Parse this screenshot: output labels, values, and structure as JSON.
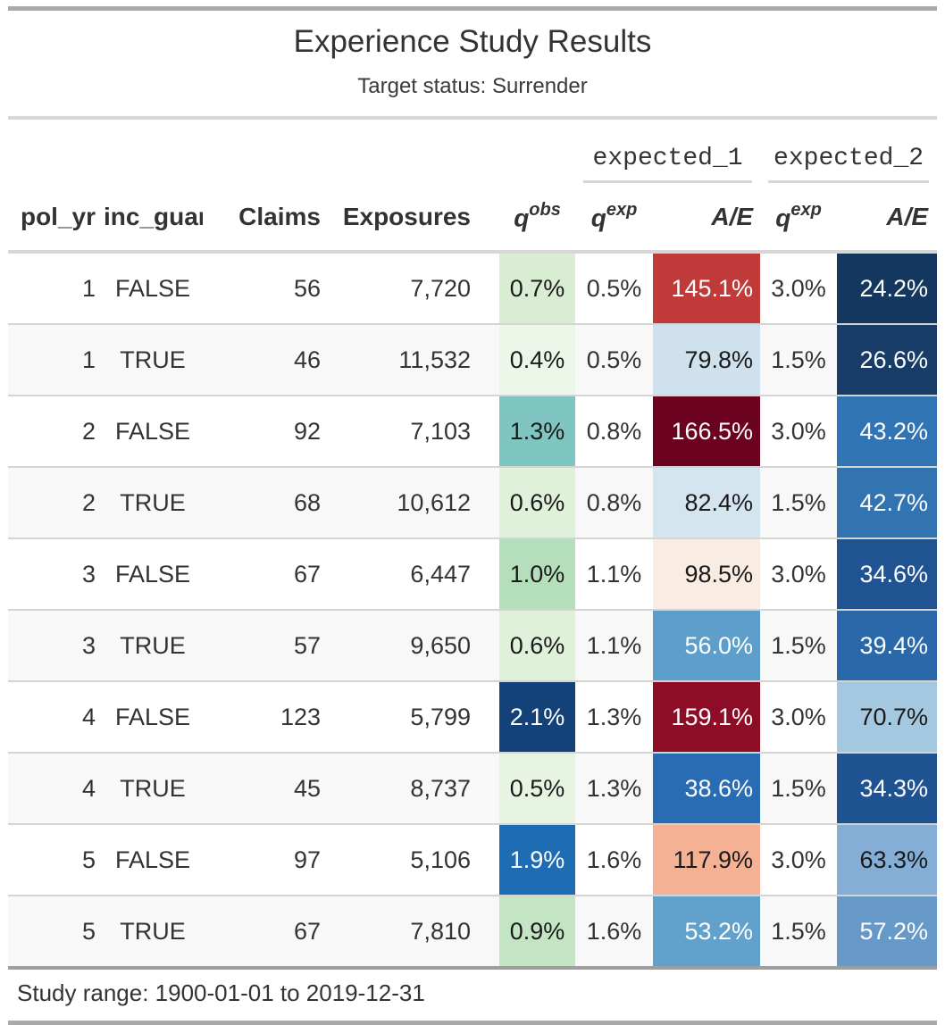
{
  "header": {
    "title": "Experience Study Results",
    "subtitle": "Target status: Surrender"
  },
  "spanners": [
    "expected_1",
    "expected_2"
  ],
  "columns": {
    "pol_yr": "pol_yr",
    "inc_guar": "inc_guar",
    "claims": "Claims",
    "exposures": "Exposures",
    "q_base": "q",
    "q_obs_sup": "obs",
    "q_exp_sup": "exp",
    "ae": "A/E"
  },
  "source_note": "Study range: 1900-01-01 to 2019-12-31",
  "palette": {
    "border_dark": "#a9a9a9",
    "border_light": "#d7d7d7",
    "row_stripe": "#f8f8f8",
    "text": "#333333"
  },
  "table": {
    "column_order": [
      "pol_yr",
      "inc_guar",
      "claims",
      "exposures",
      "q_obs",
      "q_exp_1",
      "ae_1",
      "q_exp_2",
      "ae_2"
    ],
    "rows": [
      {
        "pol_yr": "1",
        "inc_guar": "FALSE",
        "claims": "56",
        "exposures": "7,720",
        "q_obs": {
          "text": "0.7%",
          "bg": "#d8edd2",
          "fg": "#1a1a1a"
        },
        "q_exp_1": "0.5%",
        "ae_1": {
          "text": "145.1%",
          "bg": "#c13a3a",
          "fg": "#ffffff"
        },
        "q_exp_2": "3.0%",
        "ae_2": {
          "text": "24.2%",
          "bg": "#14375f",
          "fg": "#ffffff"
        }
      },
      {
        "pol_yr": "1",
        "inc_guar": "TRUE",
        "claims": "46",
        "exposures": "11,532",
        "q_obs": {
          "text": "0.4%",
          "bg": "#edf7e9",
          "fg": "#1a1a1a"
        },
        "q_exp_1": "0.5%",
        "ae_1": {
          "text": "79.8%",
          "bg": "#cfe1ed",
          "fg": "#1a1a1a"
        },
        "q_exp_2": "1.5%",
        "ae_2": {
          "text": "26.6%",
          "bg": "#173c67",
          "fg": "#ffffff"
        }
      },
      {
        "pol_yr": "2",
        "inc_guar": "FALSE",
        "claims": "92",
        "exposures": "7,103",
        "q_obs": {
          "text": "1.3%",
          "bg": "#7fc6c3",
          "fg": "#1a1a1a"
        },
        "q_exp_1": "0.8%",
        "ae_1": {
          "text": "166.5%",
          "bg": "#6a0220",
          "fg": "#ffffff"
        },
        "q_exp_2": "3.0%",
        "ae_2": {
          "text": "43.2%",
          "bg": "#3174b3",
          "fg": "#ffffff"
        }
      },
      {
        "pol_yr": "2",
        "inc_guar": "TRUE",
        "claims": "68",
        "exposures": "10,612",
        "q_obs": {
          "text": "0.6%",
          "bg": "#e0f1da",
          "fg": "#1a1a1a"
        },
        "q_exp_1": "0.8%",
        "ae_1": {
          "text": "82.4%",
          "bg": "#d5e5f0",
          "fg": "#1a1a1a"
        },
        "q_exp_2": "1.5%",
        "ae_2": {
          "text": "42.7%",
          "bg": "#3273b2",
          "fg": "#ffffff"
        }
      },
      {
        "pol_yr": "3",
        "inc_guar": "FALSE",
        "claims": "67",
        "exposures": "6,447",
        "q_obs": {
          "text": "1.0%",
          "bg": "#b5dfba",
          "fg": "#1a1a1a"
        },
        "q_exp_1": "1.1%",
        "ae_1": {
          "text": "98.5%",
          "bg": "#f8ece3",
          "fg": "#1a1a1a"
        },
        "q_exp_2": "3.0%",
        "ae_2": {
          "text": "34.6%",
          "bg": "#1f5391",
          "fg": "#ffffff"
        }
      },
      {
        "pol_yr": "3",
        "inc_guar": "TRUE",
        "claims": "57",
        "exposures": "9,650",
        "q_obs": {
          "text": "0.6%",
          "bg": "#e0f1da",
          "fg": "#1a1a1a"
        },
        "q_exp_1": "1.1%",
        "ae_1": {
          "text": "56.0%",
          "bg": "#5d9fca",
          "fg": "#ffffff"
        },
        "q_exp_2": "1.5%",
        "ae_2": {
          "text": "39.4%",
          "bg": "#2b68aa",
          "fg": "#ffffff"
        }
      },
      {
        "pol_yr": "4",
        "inc_guar": "FALSE",
        "claims": "123",
        "exposures": "5,799",
        "q_obs": {
          "text": "2.1%",
          "bg": "#134279",
          "fg": "#ffffff"
        },
        "q_exp_1": "1.3%",
        "ae_1": {
          "text": "159.1%",
          "bg": "#8e0d26",
          "fg": "#ffffff"
        },
        "q_exp_2": "3.0%",
        "ae_2": {
          "text": "70.7%",
          "bg": "#a5c8e1",
          "fg": "#1a1a1a"
        }
      },
      {
        "pol_yr": "4",
        "inc_guar": "TRUE",
        "claims": "45",
        "exposures": "8,737",
        "q_obs": {
          "text": "0.5%",
          "bg": "#e8f4e2",
          "fg": "#1a1a1a"
        },
        "q_exp_1": "1.3%",
        "ae_1": {
          "text": "38.6%",
          "bg": "#2a6cb3",
          "fg": "#ffffff"
        },
        "q_exp_2": "1.5%",
        "ae_2": {
          "text": "34.3%",
          "bg": "#1e5290",
          "fg": "#ffffff"
        }
      },
      {
        "pol_yr": "5",
        "inc_guar": "FALSE",
        "claims": "97",
        "exposures": "5,106",
        "q_obs": {
          "text": "1.9%",
          "bg": "#1e6db4",
          "fg": "#ffffff"
        },
        "q_exp_1": "1.6%",
        "ae_1": {
          "text": "117.9%",
          "bg": "#f5b194",
          "fg": "#1a1a1a"
        },
        "q_exp_2": "3.0%",
        "ae_2": {
          "text": "63.3%",
          "bg": "#84aed5",
          "fg": "#1a1a1a"
        }
      },
      {
        "pol_yr": "5",
        "inc_guar": "TRUE",
        "claims": "67",
        "exposures": "7,810",
        "q_obs": {
          "text": "0.9%",
          "bg": "#c4e5c4",
          "fg": "#1a1a1a"
        },
        "q_exp_1": "1.6%",
        "ae_1": {
          "text": "53.2%",
          "bg": "#61a1cb",
          "fg": "#ffffff"
        },
        "q_exp_2": "1.5%",
        "ae_2": {
          "text": "57.2%",
          "bg": "#6699c8",
          "fg": "#ffffff"
        }
      }
    ]
  },
  "chart_data": {
    "type": "table",
    "title": "Experience Study Results",
    "subtitle": "Target status: Surrender",
    "spanners": {
      "expected_1": [
        "q_exp",
        "A/E"
      ],
      "expected_2": [
        "q_exp",
        "A/E"
      ]
    },
    "columns": [
      "pol_yr",
      "inc_guar",
      "Claims",
      "Exposures",
      "q_obs",
      "q_exp (expected_1)",
      "A/E (expected_1)",
      "q_exp (expected_2)",
      "A/E (expected_2)"
    ],
    "rows": [
      [
        1,
        "FALSE",
        56,
        7720,
        "0.7%",
        "0.5%",
        "145.1%",
        "3.0%",
        "24.2%"
      ],
      [
        1,
        "TRUE",
        46,
        11532,
        "0.4%",
        "0.5%",
        "79.8%",
        "1.5%",
        "26.6%"
      ],
      [
        2,
        "FALSE",
        92,
        7103,
        "1.3%",
        "0.8%",
        "166.5%",
        "3.0%",
        "43.2%"
      ],
      [
        2,
        "TRUE",
        68,
        10612,
        "0.6%",
        "0.8%",
        "82.4%",
        "1.5%",
        "42.7%"
      ],
      [
        3,
        "FALSE",
        67,
        6447,
        "1.0%",
        "1.1%",
        "98.5%",
        "3.0%",
        "34.6%"
      ],
      [
        3,
        "TRUE",
        57,
        9650,
        "0.6%",
        "1.1%",
        "56.0%",
        "1.5%",
        "39.4%"
      ],
      [
        4,
        "FALSE",
        123,
        5799,
        "2.1%",
        "1.3%",
        "159.1%",
        "3.0%",
        "70.7%"
      ],
      [
        4,
        "TRUE",
        45,
        8737,
        "0.5%",
        "1.3%",
        "38.6%",
        "1.5%",
        "34.3%"
      ],
      [
        5,
        "FALSE",
        97,
        5106,
        "1.9%",
        "1.6%",
        "117.9%",
        "3.0%",
        "63.3%"
      ],
      [
        5,
        "TRUE",
        67,
        7810,
        "0.9%",
        "1.6%",
        "53.2%",
        "1.5%",
        "57.2%"
      ]
    ],
    "source_note": "Study range: 1900-01-01 to 2019-12-31",
    "legend_position": "none",
    "grid": false
  }
}
